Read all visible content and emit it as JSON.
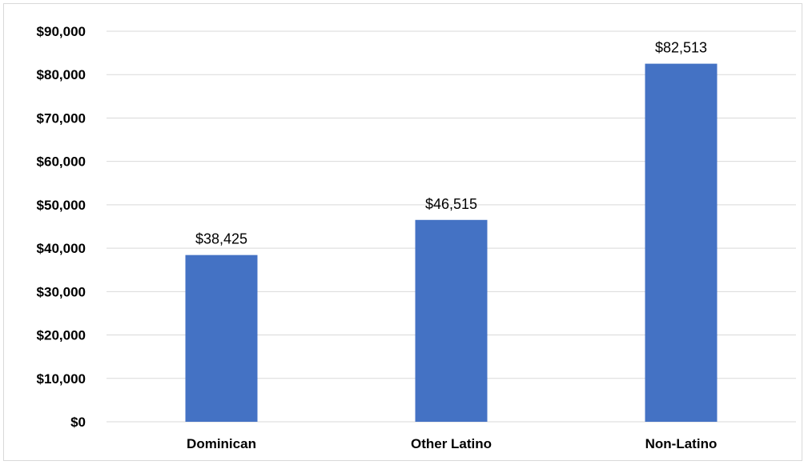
{
  "chart_data": {
    "type": "bar",
    "title": "",
    "xlabel": "",
    "ylabel": "",
    "categories": [
      "Dominican",
      "Other Latino",
      "Non-Latino"
    ],
    "values": [
      38425,
      46515,
      82513
    ],
    "data_labels": [
      "$38,425",
      "$46,515",
      "$82,513"
    ],
    "ylim": [
      0,
      90000
    ],
    "yticks": [
      0,
      10000,
      20000,
      30000,
      40000,
      50000,
      60000,
      70000,
      80000,
      90000
    ],
    "ytick_labels": [
      "$0",
      "$10,000",
      "$20,000",
      "$30,000",
      "$40,000",
      "$50,000",
      "$60,000",
      "$70,000",
      "$80,000",
      "$90,000"
    ],
    "grid": true,
    "legend": "none",
    "bar_color": "#4472c4",
    "grid_color": "#d9d9d9"
  }
}
